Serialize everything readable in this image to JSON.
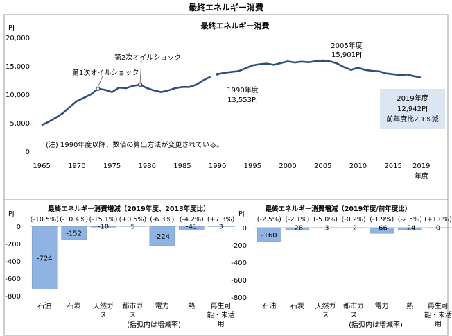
{
  "page_title": "最終エネルギー消費",
  "chart_data": [
    {
      "type": "line",
      "title": "最終エネルギー消費",
      "ylabel": "PJ",
      "xlabel": "年度",
      "ylim": [
        0,
        20000
      ],
      "yticks": [
        "20,000",
        "15,000",
        "10,000",
        "5,000",
        "0"
      ],
      "ytick_values": [
        20000,
        15000,
        10000,
        5000,
        0
      ],
      "xticks": [
        "1965",
        "1970",
        "1975",
        "1980",
        "1985",
        "1990",
        "1995",
        "2000",
        "2005",
        "2010",
        "2015",
        "2019"
      ],
      "xtick_values": [
        1965,
        1970,
        1975,
        1980,
        1985,
        1990,
        1995,
        2000,
        2005,
        2010,
        2015,
        2019
      ],
      "xlim": [
        1964,
        2021
      ],
      "series": [
        {
          "x": [
            1965,
            1966,
            1967,
            1968,
            1969,
            1970,
            1971,
            1972,
            1973,
            1974,
            1975,
            1976,
            1977,
            1978,
            1979,
            1980,
            1981,
            1982,
            1983,
            1984,
            1985,
            1986,
            1987,
            1988,
            1989
          ],
          "values": [
            4600,
            5200,
            5900,
            6700,
            7800,
            8800,
            9400,
            10000,
            11000,
            10800,
            10400,
            11200,
            11100,
            11500,
            11700,
            11100,
            10700,
            10400,
            10700,
            11100,
            11300,
            11300,
            11700,
            12500,
            13100
          ]
        },
        {
          "x": [
            1990,
            1991,
            1992,
            1993,
            1994,
            1995,
            1996,
            1997,
            1998,
            1999,
            2000,
            2001,
            2002,
            2003,
            2004,
            2005,
            2006,
            2007,
            2008,
            2009,
            2010,
            2011,
            2012,
            2013,
            2014,
            2015,
            2016,
            2017,
            2018,
            2019
          ],
          "values": [
            13553,
            13800,
            13950,
            14100,
            14600,
            15100,
            15300,
            15400,
            15200,
            15500,
            15800,
            15600,
            15750,
            15650,
            15850,
            15901,
            15800,
            15450,
            14800,
            14300,
            14700,
            14300,
            14150,
            14050,
            13700,
            13550,
            13400,
            13500,
            13200,
            12942
          ]
        }
      ],
      "annotations": [
        {
          "text": "第1次オイルショック",
          "x": 1973,
          "y": 11000
        },
        {
          "text": "第2次オイルショック",
          "x": 1979,
          "y": 11700
        },
        {
          "text_lines": [
            "1990年度",
            "13,553PJ"
          ],
          "x": 1990,
          "y": 13553
        },
        {
          "text_lines": [
            "2005年度",
            "15,901PJ"
          ],
          "x": 2005,
          "y": 15901
        },
        {
          "text_lines": [
            "2019年度",
            "12,942PJ",
            "前年度比2.1%減"
          ],
          "x": 2019,
          "y": 12942
        }
      ],
      "note": "(注) 1990年度以降、数値の算出方法が変更されている。"
    },
    {
      "type": "bar",
      "title": "最終エネルギー消費増減（2019年度、2013年度比）",
      "ylabel": "PJ",
      "ylim": [
        -800,
        0
      ],
      "yticks": [
        "0",
        "-200",
        "-400",
        "-600",
        "-800"
      ],
      "ytick_values": [
        0,
        -200,
        -400,
        -600,
        -800
      ],
      "categories": [
        "石油",
        "石炭",
        "天然ガス",
        "都市ガス",
        "電力",
        "熱",
        "再生可能・未活用"
      ],
      "category_lines": [
        [
          "石油"
        ],
        [
          "石炭"
        ],
        [
          "天然ガ",
          "ス"
        ],
        [
          "都市ガ",
          "ス"
        ],
        [
          "電力"
        ],
        [
          "熱"
        ],
        [
          "再生可",
          "能・未活",
          "用"
        ]
      ],
      "values": [
        -724,
        -152,
        -10,
        5,
        -224,
        -41,
        3
      ],
      "data_labels": [
        "-724",
        "-152",
        "-10",
        "5",
        "-224",
        "-41",
        "3"
      ],
      "pct_labels": [
        "(-10.5%)",
        "(-10.4%)",
        "(-15.1%)",
        "(+0.5%)",
        "(-6.3%)",
        "(-4.2%)",
        "(+7.3%)"
      ],
      "footnote": "(括弧内は増減率)"
    },
    {
      "type": "bar",
      "title": "最終エネルギー消費増減（2019年度/前年度比）",
      "ylabel": "PJ",
      "ylim": [
        -800,
        0
      ],
      "yticks": [
        "0",
        "-200",
        "-400",
        "-600",
        "-800"
      ],
      "ytick_values": [
        0,
        -200,
        -400,
        -600,
        -800
      ],
      "categories": [
        "石油",
        "石炭",
        "天然ガス",
        "都市ガス",
        "電力",
        "熱",
        "再生可能・未活用"
      ],
      "category_lines": [
        [
          "石油"
        ],
        [
          "石炭"
        ],
        [
          "天然ガ",
          "ス"
        ],
        [
          "都市ガ",
          "ス"
        ],
        [
          "電力"
        ],
        [
          "熱"
        ],
        [
          "再生可",
          "能・未活",
          "用"
        ]
      ],
      "values": [
        -160,
        -28,
        -3,
        -2,
        -66,
        -24,
        0
      ],
      "data_labels": [
        "-160",
        "-28",
        "-3",
        "-2",
        "-66",
        "-24",
        "0"
      ],
      "pct_labels": [
        "(-2.5%)",
        "(-2.1%)",
        "(-5.0%)",
        "(-0.2%)",
        "(-1.9%)",
        "(-2.5%)",
        "(+1.0%)"
      ],
      "footnote": "(括弧内は増減率)"
    }
  ],
  "colors": {
    "line": "#2e4d83",
    "bar": "#8fb4e3",
    "bar_edge": "#6f97cf",
    "note_box": "#dce6f2",
    "frame": "#9a9a9a",
    "axis": "#bfbfbf"
  }
}
